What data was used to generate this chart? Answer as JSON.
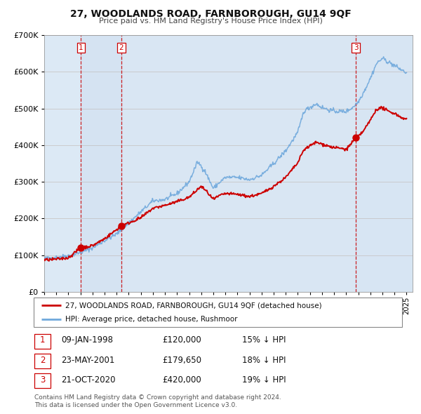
{
  "title": "27, WOODLANDS ROAD, FARNBOROUGH, GU14 9QF",
  "subtitle": "Price paid vs. HM Land Registry's House Price Index (HPI)",
  "bg_color": "#dce9f5",
  "ylim": [
    0,
    700000
  ],
  "yticks": [
    0,
    100000,
    200000,
    300000,
    400000,
    500000,
    600000,
    700000
  ],
  "xmin": 1995.0,
  "xmax": 2025.5,
  "sale_dates": [
    1998.03,
    2001.39,
    2020.8
  ],
  "sale_prices": [
    120000,
    179650,
    420000
  ],
  "sale_labels": [
    "1",
    "2",
    "3"
  ],
  "vline_color": "#cc0000",
  "sale_dot_color": "#cc0000",
  "hpi_line_color": "#6fa8dc",
  "price_line_color": "#cc0000",
  "legend_label_price": "27, WOODLANDS ROAD, FARNBOROUGH, GU14 9QF (detached house)",
  "legend_label_hpi": "HPI: Average price, detached house, Rushmoor",
  "table_rows": [
    [
      "1",
      "09-JAN-1998",
      "£120,000",
      "15% ↓ HPI"
    ],
    [
      "2",
      "23-MAY-2001",
      "£179,650",
      "18% ↓ HPI"
    ],
    [
      "3",
      "21-OCT-2020",
      "£420,000",
      "19% ↓ HPI"
    ]
  ],
  "footnote": "Contains HM Land Registry data © Crown copyright and database right 2024.\nThis data is licensed under the Open Government Licence v3.0.",
  "xtick_years": [
    1995,
    1996,
    1997,
    1998,
    1999,
    2000,
    2001,
    2002,
    2003,
    2004,
    2005,
    2006,
    2007,
    2008,
    2009,
    2010,
    2011,
    2012,
    2013,
    2014,
    2015,
    2016,
    2017,
    2018,
    2019,
    2020,
    2021,
    2022,
    2023,
    2024,
    2025
  ],
  "hpi_anchors": [
    [
      1995.0,
      91000
    ],
    [
      1996.0,
      94000
    ],
    [
      1997.0,
      99000
    ],
    [
      1998.0,
      107000
    ],
    [
      1999.0,
      120000
    ],
    [
      2000.0,
      140000
    ],
    [
      2001.0,
      158000
    ],
    [
      2002.0,
      188000
    ],
    [
      2003.0,
      218000
    ],
    [
      2004.0,
      248000
    ],
    [
      2005.0,
      252000
    ],
    [
      2006.0,
      268000
    ],
    [
      2007.0,
      300000
    ],
    [
      2007.7,
      355000
    ],
    [
      2008.3,
      330000
    ],
    [
      2009.0,
      282000
    ],
    [
      2009.5,
      298000
    ],
    [
      2010.0,
      312000
    ],
    [
      2011.0,
      312000
    ],
    [
      2012.0,
      306000
    ],
    [
      2013.0,
      318000
    ],
    [
      2014.0,
      350000
    ],
    [
      2015.0,
      385000
    ],
    [
      2016.0,
      435000
    ],
    [
      2016.5,
      493000
    ],
    [
      2017.0,
      503000
    ],
    [
      2017.5,
      513000
    ],
    [
      2018.0,
      503000
    ],
    [
      2018.5,
      497000
    ],
    [
      2019.0,
      493000
    ],
    [
      2019.5,
      492000
    ],
    [
      2020.0,
      492000
    ],
    [
      2020.5,
      502000
    ],
    [
      2021.0,
      518000
    ],
    [
      2021.5,
      548000
    ],
    [
      2022.0,
      582000
    ],
    [
      2022.5,
      622000
    ],
    [
      2023.0,
      637000
    ],
    [
      2023.5,
      627000
    ],
    [
      2024.0,
      617000
    ],
    [
      2024.5,
      607000
    ],
    [
      2025.0,
      597000
    ]
  ],
  "price_anchors": [
    [
      1995.0,
      87000
    ],
    [
      1996.0,
      89000
    ],
    [
      1997.0,
      93000
    ],
    [
      1998.03,
      120000
    ],
    [
      1999.0,
      126000
    ],
    [
      2000.0,
      145000
    ],
    [
      2001.39,
      179650
    ],
    [
      2002.0,
      188000
    ],
    [
      2003.0,
      202000
    ],
    [
      2004.0,
      228000
    ],
    [
      2005.0,
      236000
    ],
    [
      2006.0,
      246000
    ],
    [
      2007.0,
      258000
    ],
    [
      2008.0,
      288000
    ],
    [
      2008.5,
      272000
    ],
    [
      2009.0,
      252000
    ],
    [
      2009.5,
      262000
    ],
    [
      2010.0,
      268000
    ],
    [
      2011.0,
      266000
    ],
    [
      2012.0,
      260000
    ],
    [
      2013.0,
      268000
    ],
    [
      2014.0,
      288000
    ],
    [
      2015.0,
      312000
    ],
    [
      2016.0,
      352000
    ],
    [
      2016.5,
      388000
    ],
    [
      2017.0,
      398000
    ],
    [
      2017.5,
      408000
    ],
    [
      2018.0,
      403000
    ],
    [
      2018.5,
      398000
    ],
    [
      2019.0,
      393000
    ],
    [
      2019.5,
      392000
    ],
    [
      2020.0,
      388000
    ],
    [
      2020.8,
      420000
    ],
    [
      2021.0,
      423000
    ],
    [
      2021.5,
      442000
    ],
    [
      2022.0,
      468000
    ],
    [
      2022.5,
      498000
    ],
    [
      2023.0,
      502000
    ],
    [
      2023.5,
      492000
    ],
    [
      2024.0,
      487000
    ],
    [
      2024.5,
      477000
    ],
    [
      2025.0,
      470000
    ]
  ]
}
